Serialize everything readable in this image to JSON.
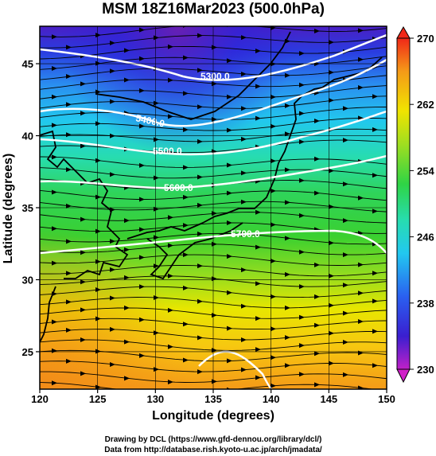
{
  "title": "MSM 18Z16Mar2023 (500.0hPa)",
  "xlabel": "Longitude (degrees)",
  "ylabel": "Latitude  (degrees)",
  "x_ticks": [
    "120",
    "125",
    "130",
    "135",
    "140",
    "145",
    "150"
  ],
  "y_ticks": [
    "25",
    "30",
    "35",
    "40",
    "45"
  ],
  "colorbar_ticks": [
    "270",
    "262",
    "254",
    "246",
    "238",
    "230"
  ],
  "contour_labels": [
    "5300.0",
    "5400.0",
    "5500.0",
    "5600.0",
    "5700.0"
  ],
  "credit_line1": "Drawing by DCL (https://www.gfd-dennou.org/library/dcl/)",
  "credit_line2": "Data from http://database.rish.kyoto-u.ac.jp/arch/jmadata/",
  "colors": {
    "cold": "#3b1fd0",
    "mid_blue": "#22c8f0",
    "green": "#22cc33",
    "yellow": "#f5e000",
    "warm": "#f29c18",
    "contour": "#ffffff",
    "coast": "#000000"
  },
  "chart_data": {
    "type": "heatmap",
    "title": "MSM 18Z16Mar2023 (500.0hPa)",
    "xlabel": "Longitude (degrees)",
    "ylabel": "Latitude  (degrees)",
    "xlim": [
      120,
      150
    ],
    "ylim": [
      22.4,
      47.6
    ],
    "colorbar": {
      "min": 230,
      "max": 270,
      "ticks": [
        230,
        238,
        246,
        254,
        262,
        270
      ]
    },
    "contours": [
      {
        "label": "5300.0",
        "level": 5300
      },
      {
        "label": "5400.0",
        "level": 5400
      },
      {
        "label": "5500.0",
        "level": 5500
      },
      {
        "label": "5600.0",
        "level": 5600
      },
      {
        "label": "5700.0",
        "level": 5700
      }
    ],
    "grid": true
  }
}
